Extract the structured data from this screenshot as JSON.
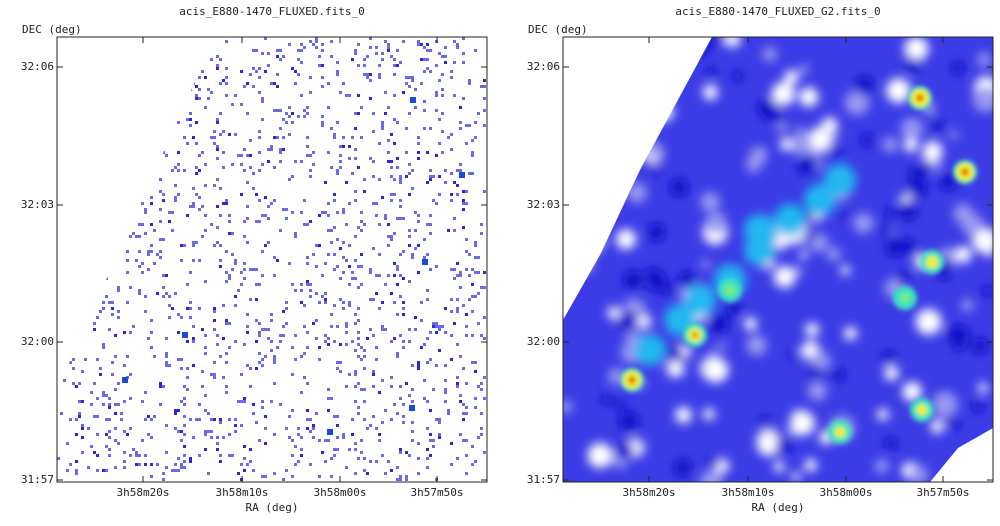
{
  "panels": [
    {
      "title": "acis_E880-1470_FLUXED.fits_0",
      "y_axis_label": "DEC (deg)",
      "x_axis_label": "RA (deg)",
      "y_ticks": [
        "32:06",
        "32:03",
        "32:00",
        "31:57"
      ],
      "x_ticks": [
        "3h58m20s",
        "3h58m10s",
        "3h58m00s",
        "3h57m50s"
      ]
    },
    {
      "title": "acis_E880-1470_FLUXED_G2.fits_0",
      "y_axis_label": "DEC (deg)",
      "x_axis_label": "RA (deg)",
      "y_ticks": [
        "32:06",
        "32:03",
        "32:00",
        "31:57"
      ],
      "x_ticks": [
        "3h58m20s",
        "3h58m10s",
        "3h58m00s",
        "3h57m50s"
      ]
    }
  ]
}
